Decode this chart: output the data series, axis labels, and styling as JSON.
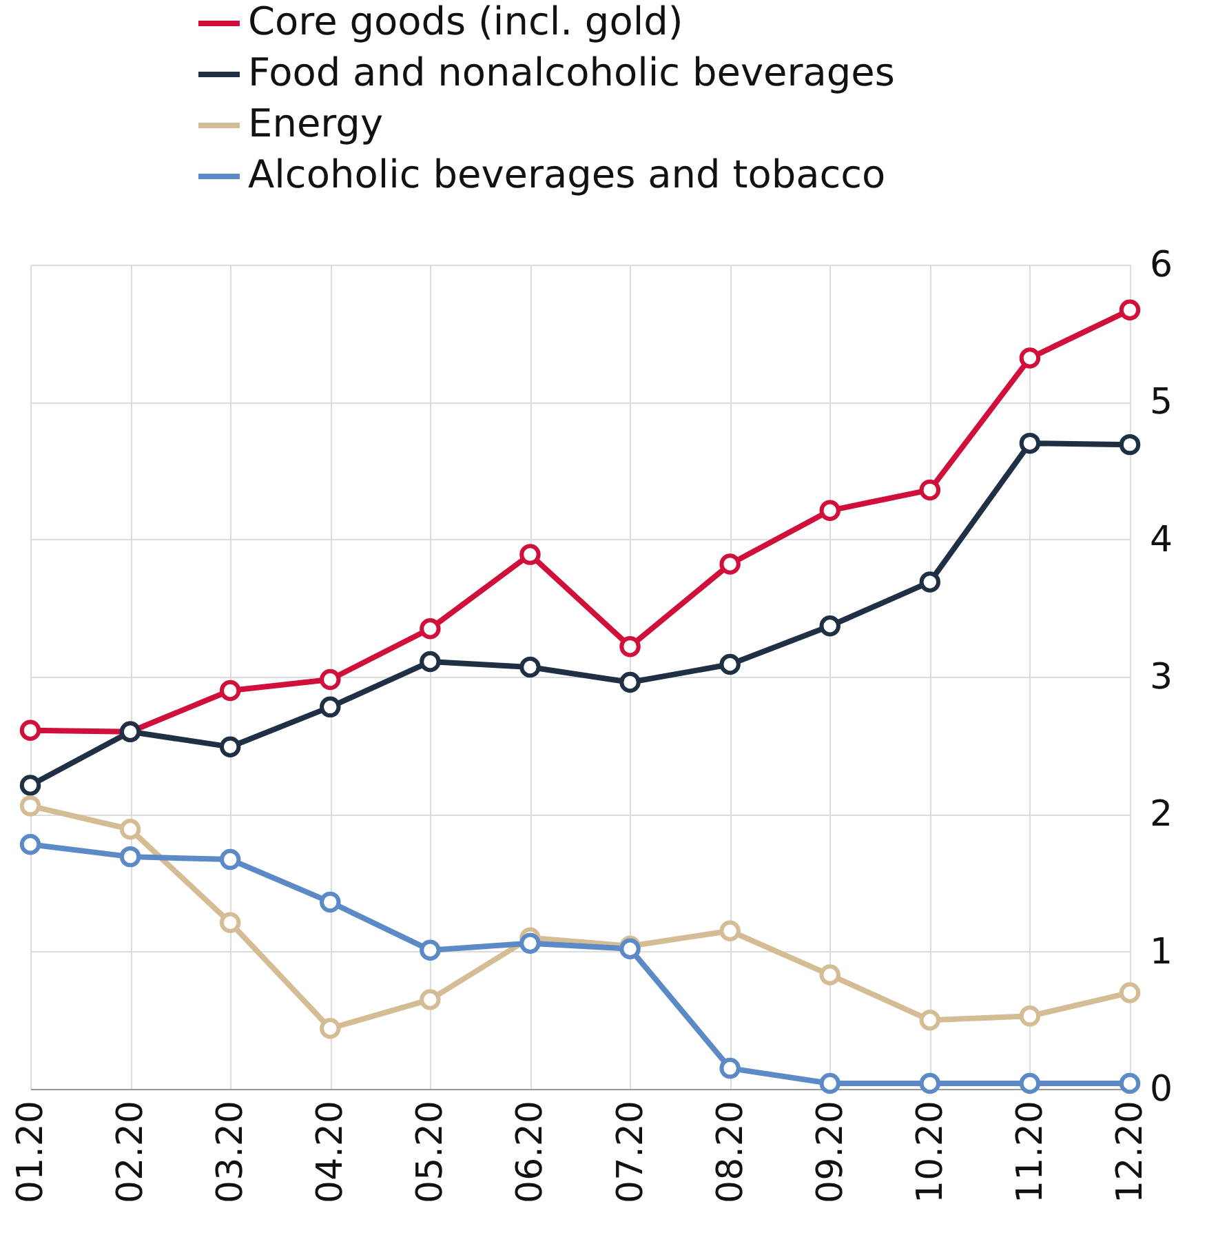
{
  "chart_data": {
    "type": "line",
    "categories": [
      "01.20",
      "02.20",
      "03.20",
      "04.20",
      "05.20",
      "06.20",
      "07.20",
      "08.20",
      "09.20",
      "10.20",
      "11.20",
      "12.20"
    ],
    "series": [
      {
        "name": "Core goods (incl. gold)",
        "color": "#d0103a",
        "values": [
          2.61,
          2.6,
          2.9,
          2.98,
          3.35,
          3.89,
          3.22,
          3.82,
          4.21,
          4.36,
          5.32,
          5.67
        ]
      },
      {
        "name": "Food and nonalcoholic beverages",
        "color": "#1f3044",
        "values": [
          2.21,
          2.6,
          2.49,
          2.78,
          3.11,
          3.07,
          2.96,
          3.09,
          3.37,
          3.69,
          4.7,
          4.69
        ]
      },
      {
        "name": "Energy",
        "color": "#d4bc94",
        "values": [
          2.06,
          1.89,
          1.21,
          0.44,
          0.65,
          1.1,
          1.04,
          1.15,
          0.83,
          0.5,
          0.53,
          0.7
        ]
      },
      {
        "name": "Alcoholic beverages and tobacco",
        "color": "#5b8ac6",
        "values": [
          1.78,
          1.69,
          1.67,
          1.36,
          1.01,
          1.06,
          1.02,
          0.15,
          0.04,
          0.04,
          0.04,
          0.04
        ]
      }
    ],
    "ylim": [
      0,
      6
    ],
    "yticks": [
      0,
      1,
      2,
      3,
      4,
      5,
      6
    ],
    "grid": true,
    "legend": "top left",
    "marker": "circle",
    "line_style": "solid"
  }
}
